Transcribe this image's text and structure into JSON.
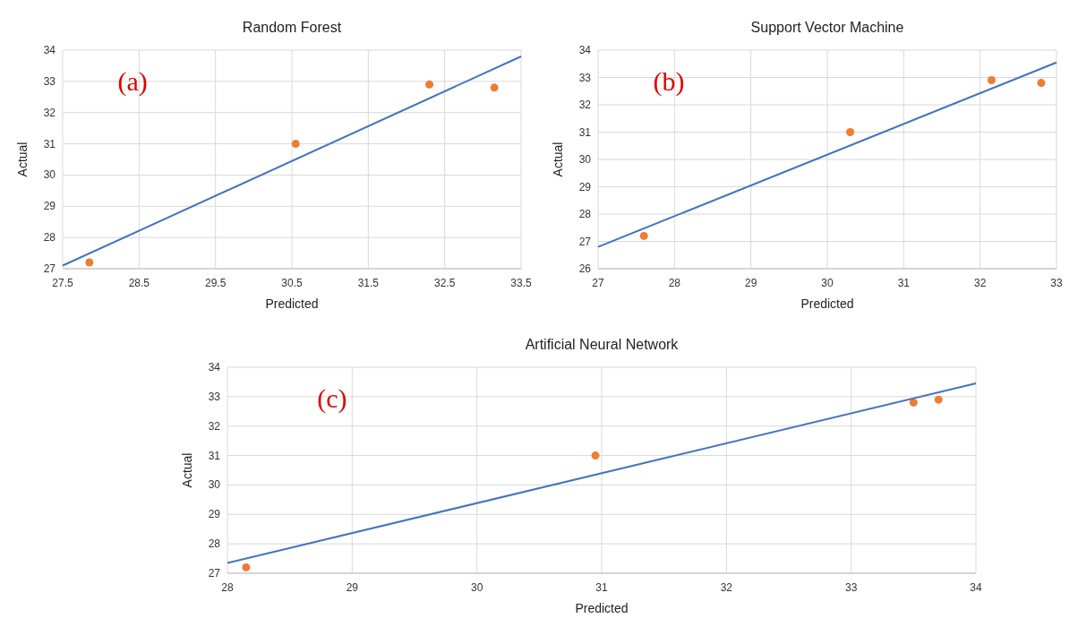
{
  "chart_data": [
    {
      "type": "scatter",
      "title": "Random Forest",
      "xlabel": "Predicted",
      "ylabel": "Actual",
      "annotations": [
        "(a)"
      ],
      "xlim": [
        27.5,
        33.5
      ],
      "xticks": [
        27.5,
        28.5,
        29.5,
        30.5,
        31.5,
        32.5,
        33.5
      ],
      "ylim": [
        27,
        34
      ],
      "yticks": [
        27,
        28,
        29,
        30,
        31,
        32,
        33,
        34
      ],
      "grid": true,
      "series": [
        {
          "marker": "circle",
          "color": "#ed7d31",
          "x": [
            27.85,
            30.55,
            32.3,
            33.15
          ],
          "values": [
            27.2,
            31.0,
            32.9,
            32.8
          ]
        },
        {
          "type": "line",
          "color": "#4472c4",
          "x": [
            27.5,
            33.5
          ],
          "values": [
            27.1,
            33.8
          ]
        }
      ]
    },
    {
      "type": "scatter",
      "title": "Support Vector Machine",
      "xlabel": "Predicted",
      "ylabel": "Actual",
      "annotations": [
        "(b)"
      ],
      "xlim": [
        27,
        33
      ],
      "xticks": [
        27,
        28,
        29,
        30,
        31,
        32,
        33
      ],
      "ylim": [
        26,
        34
      ],
      "yticks": [
        26,
        27,
        28,
        29,
        30,
        31,
        32,
        33,
        34
      ],
      "grid": true,
      "series": [
        {
          "marker": "circle",
          "color": "#ed7d31",
          "x": [
            27.6,
            30.3,
            32.15,
            32.8
          ],
          "values": [
            27.2,
            31.0,
            32.9,
            32.8
          ]
        },
        {
          "type": "line",
          "color": "#4472c4",
          "x": [
            27,
            33
          ],
          "values": [
            26.8,
            33.55
          ]
        }
      ]
    },
    {
      "type": "scatter",
      "title": "Artificial Neural Network",
      "xlabel": "Predicted",
      "ylabel": "Actual",
      "annotations": [
        "(c)"
      ],
      "xlim": [
        28,
        34
      ],
      "xticks": [
        28,
        29,
        30,
        31,
        32,
        33,
        34
      ],
      "ylim": [
        27,
        34
      ],
      "yticks": [
        27,
        28,
        29,
        30,
        31,
        32,
        33,
        34
      ],
      "grid": true,
      "series": [
        {
          "marker": "circle",
          "color": "#ed7d31",
          "x": [
            28.15,
            30.95,
            33.5,
            33.7
          ],
          "values": [
            27.2,
            31.0,
            32.8,
            32.9
          ]
        },
        {
          "type": "line",
          "color": "#4472c4",
          "x": [
            28,
            34
          ],
          "values": [
            27.35,
            33.45
          ]
        }
      ]
    }
  ]
}
